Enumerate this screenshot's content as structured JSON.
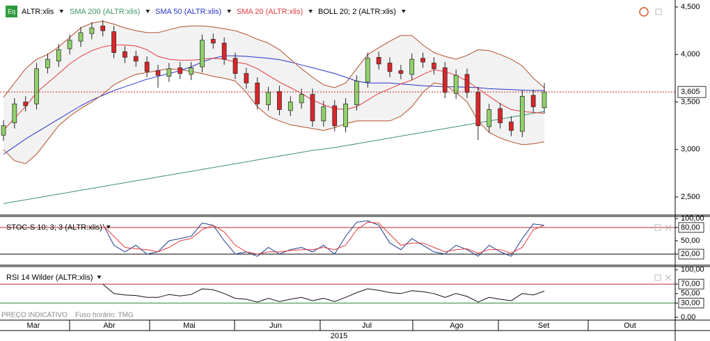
{
  "icon": "Eq",
  "x_axis": {
    "months": [
      "Mar",
      "Abr",
      "Mai",
      "Jun",
      "Jul",
      "Ago",
      "Set",
      "Out"
    ],
    "year": "2015"
  },
  "footer": {
    "note": "PREÇO INDICATIVO",
    "timezone": "Fuso horário: TMG"
  },
  "chart_data": [
    {
      "type": "candlestick",
      "name": "ALTR:xlis",
      "up_color": "#8fd16a",
      "down_color": "#d9262b",
      "open": [
        3.15,
        3.28,
        3.5,
        3.48,
        3.86,
        3.93,
        4.06,
        4.14,
        4.22,
        4.3,
        4.24,
        4.03,
        3.98,
        3.92,
        3.83,
        3.77,
        3.86,
        3.79,
        3.87,
        4.16,
        4.12,
        3.96,
        3.8,
        3.7,
        3.47,
        3.61,
        3.41,
        3.49,
        3.58,
        3.3,
        3.46,
        3.24,
        3.47,
        3.71,
        3.97,
        3.91,
        3.83,
        3.79,
        3.96,
        3.91,
        3.86,
        3.59,
        3.79,
        3.6,
        3.24,
        3.43,
        3.29,
        3.19,
        3.57,
        3.44
      ],
      "high": [
        3.31,
        3.54,
        3.56,
        3.91,
        4.01,
        4.11,
        4.21,
        4.29,
        4.34,
        4.36,
        4.3,
        4.09,
        4.04,
        3.98,
        3.89,
        3.91,
        3.92,
        3.92,
        4.21,
        4.22,
        4.18,
        4.02,
        3.86,
        3.76,
        3.66,
        3.67,
        3.56,
        3.64,
        3.64,
        3.51,
        3.52,
        3.54,
        3.78,
        4.02,
        4.03,
        3.97,
        3.89,
        4.01,
        4.02,
        3.97,
        3.92,
        3.84,
        3.85,
        3.66,
        3.48,
        3.49,
        3.35,
        3.62,
        3.63,
        3.7
      ],
      "low": [
        3.09,
        3.22,
        3.4,
        3.42,
        3.8,
        3.87,
        4.0,
        4.08,
        4.16,
        4.19,
        3.96,
        3.91,
        3.87,
        3.76,
        3.65,
        3.71,
        3.74,
        3.73,
        3.81,
        4.06,
        3.89,
        3.74,
        3.64,
        3.42,
        3.41,
        3.36,
        3.35,
        3.43,
        3.24,
        3.24,
        3.19,
        3.18,
        3.41,
        3.65,
        3.84,
        3.76,
        3.74,
        3.73,
        3.86,
        3.79,
        3.54,
        3.53,
        3.54,
        3.1,
        3.18,
        3.22,
        3.14,
        3.13,
        3.39,
        3.38
      ],
      "close": [
        3.25,
        3.48,
        3.46,
        3.85,
        3.95,
        4.05,
        4.15,
        4.23,
        4.28,
        4.25,
        4.02,
        3.97,
        3.93,
        3.82,
        3.78,
        3.85,
        3.8,
        3.86,
        4.15,
        4.12,
        3.95,
        3.8,
        3.7,
        3.48,
        3.6,
        3.42,
        3.5,
        3.58,
        3.3,
        3.45,
        3.25,
        3.48,
        3.72,
        3.96,
        3.9,
        3.82,
        3.8,
        3.95,
        3.92,
        3.85,
        3.6,
        3.78,
        3.6,
        3.25,
        3.42,
        3.28,
        3.2,
        3.56,
        3.45,
        3.605
      ],
      "series": [
        {
          "name": "SMA 200 (ALTR:xlis)",
          "color": "#3f9468",
          "values": [
            2.43,
            2.45,
            2.47,
            2.49,
            2.51,
            2.53,
            2.55,
            2.57,
            2.59,
            2.61,
            2.63,
            2.65,
            2.67,
            2.69,
            2.71,
            2.73,
            2.75,
            2.77,
            2.79,
            2.81,
            2.83,
            2.85,
            2.87,
            2.89,
            2.91,
            2.93,
            2.95,
            2.97,
            2.99,
            3.005,
            3.02,
            3.04,
            3.06,
            3.08,
            3.1,
            3.12,
            3.14,
            3.16,
            3.18,
            3.2,
            3.22,
            3.24,
            3.26,
            3.28,
            3.3,
            3.32,
            3.34,
            3.36,
            3.38,
            3.4
          ]
        },
        {
          "name": "SMA 50 (ALTR:xlis)",
          "color": "#2833c8",
          "values": [
            2.95,
            3.03,
            3.11,
            3.18,
            3.25,
            3.32,
            3.39,
            3.46,
            3.52,
            3.57,
            3.62,
            3.66,
            3.7,
            3.74,
            3.77,
            3.8,
            3.83,
            3.87,
            3.92,
            3.96,
            3.985,
            3.985,
            3.98,
            3.97,
            3.96,
            3.945,
            3.92,
            3.89,
            3.86,
            3.83,
            3.8,
            3.76,
            3.72,
            3.7,
            3.7,
            3.7,
            3.69,
            3.68,
            3.67,
            3.665,
            3.66,
            3.66,
            3.655,
            3.65,
            3.64,
            3.635,
            3.63,
            3.625,
            3.62,
            3.62
          ]
        },
        {
          "name": "SMA 20 (ALTR:xlis)",
          "color": "#e23a3f",
          "values": [
            3.2,
            3.33,
            3.45,
            3.6,
            3.7,
            3.8,
            3.9,
            3.98,
            4.04,
            4.08,
            4.1,
            4.1,
            4.09,
            4.05,
            3.98,
            3.95,
            3.94,
            3.94,
            3.95,
            3.96,
            3.95,
            3.92,
            3.9,
            3.85,
            3.78,
            3.71,
            3.65,
            3.59,
            3.52,
            3.47,
            3.43,
            3.42,
            3.45,
            3.52,
            3.59,
            3.64,
            3.69,
            3.73,
            3.79,
            3.84,
            3.82,
            3.78,
            3.72,
            3.64,
            3.56,
            3.48,
            3.42,
            3.4,
            3.39,
            3.38
          ]
        }
      ],
      "bollinger": {
        "name": "BOLL 20; 2 (ALTR:xlis)",
        "color": "#b0502c",
        "fill": "#f2f2f2",
        "upper": [
          3.55,
          3.7,
          3.85,
          3.95,
          4.0,
          4.08,
          4.18,
          4.28,
          4.33,
          4.35,
          4.32,
          4.28,
          4.25,
          4.23,
          4.23,
          4.26,
          4.29,
          4.3,
          4.3,
          4.29,
          4.27,
          4.25,
          4.21,
          4.16,
          4.12,
          4.05,
          3.95,
          3.85,
          3.76,
          3.68,
          3.65,
          3.7,
          3.85,
          4.0,
          4.07,
          4.14,
          4.2,
          4.2,
          4.1,
          4.02,
          3.98,
          3.95,
          3.99,
          4.05,
          4.04,
          4.0,
          3.95,
          3.88,
          3.75,
          3.65
        ],
        "lower": [
          3.0,
          2.88,
          2.85,
          2.95,
          3.1,
          3.25,
          3.35,
          3.43,
          3.5,
          3.58,
          3.68,
          3.74,
          3.79,
          3.81,
          3.83,
          3.85,
          3.84,
          3.82,
          3.8,
          3.77,
          3.75,
          3.72,
          3.6,
          3.45,
          3.35,
          3.3,
          3.26,
          3.24,
          3.22,
          3.2,
          3.23,
          3.27,
          3.3,
          3.3,
          3.3,
          3.3,
          3.35,
          3.45,
          3.6,
          3.7,
          3.68,
          3.6,
          3.5,
          3.3,
          3.18,
          3.12,
          3.08,
          3.05,
          3.06,
          3.08
        ]
      },
      "last_price": {
        "value": 3.605,
        "label": "3,605",
        "color": "#c0282c"
      },
      "ylim": [
        2.3,
        4.55
      ],
      "yticks": [
        {
          "value": 4.5,
          "label": "4,500"
        },
        {
          "value": 4.0,
          "label": "4,000"
        },
        {
          "value": 3.5,
          "label": "3,500"
        },
        {
          "value": 3.0,
          "label": "3,000"
        },
        {
          "value": 2.5,
          "label": "2,500"
        }
      ]
    },
    {
      "type": "line",
      "title": "STOC-S 10; 3; 3 (ALTR:xlis)",
      "series": [
        {
          "color": "#1d3b8f",
          "values": [
            null,
            null,
            null,
            null,
            null,
            null,
            null,
            null,
            null,
            88,
            40,
            25,
            40,
            20,
            25,
            50,
            55,
            60,
            90,
            85,
            50,
            20,
            25,
            15,
            35,
            20,
            30,
            35,
            25,
            40,
            20,
            60,
            92,
            95,
            85,
            45,
            30,
            55,
            40,
            25,
            20,
            40,
            30,
            15,
            40,
            25,
            15,
            55,
            88,
            85
          ]
        },
        {
          "color": "#e2393e",
          "values": [
            null,
            null,
            null,
            null,
            null,
            null,
            null,
            null,
            null,
            85,
            60,
            35,
            32,
            30,
            25,
            35,
            50,
            55,
            75,
            85,
            70,
            40,
            25,
            20,
            25,
            25,
            28,
            30,
            30,
            35,
            30,
            40,
            75,
            92,
            90,
            65,
            40,
            45,
            45,
            35,
            25,
            30,
            32,
            22,
            30,
            30,
            22,
            35,
            75,
            85
          ]
        }
      ],
      "levels": [
        {
          "value": 80,
          "color": "#c0282c"
        },
        {
          "value": 20,
          "color": "#000000"
        }
      ],
      "ylim": [
        -5,
        105
      ],
      "yticks": [
        {
          "value": 100,
          "label": "100,00"
        },
        {
          "value": 80,
          "label": "80,00"
        },
        {
          "value": 50,
          "label": "50,00"
        },
        {
          "value": 20,
          "label": "20,00"
        }
      ]
    },
    {
      "type": "line",
      "title": "RSI 14 Wilder (ALTR:xlis)",
      "series": [
        {
          "color": "#111111",
          "values": [
            null,
            null,
            null,
            null,
            null,
            null,
            null,
            null,
            null,
            70,
            50,
            47,
            46,
            42,
            42,
            48,
            45,
            48,
            60,
            58,
            50,
            40,
            38,
            32,
            40,
            33,
            38,
            42,
            35,
            40,
            33,
            42,
            52,
            60,
            57,
            52,
            50,
            56,
            54,
            50,
            42,
            50,
            44,
            32,
            42,
            38,
            35,
            50,
            47,
            55
          ]
        }
      ],
      "levels": [
        {
          "value": 70,
          "color": "#c0282c"
        },
        {
          "value": 30,
          "color": "#2e8b3a"
        }
      ],
      "ylim": [
        -6,
        107
      ],
      "yticks": [
        {
          "value": 100,
          "label": "100,00"
        },
        {
          "value": 70,
          "label": "70,00"
        },
        {
          "value": 50,
          "label": "50,00"
        },
        {
          "value": 30,
          "label": "30,00"
        },
        {
          "value": 0,
          "label": "0,00"
        }
      ]
    }
  ]
}
